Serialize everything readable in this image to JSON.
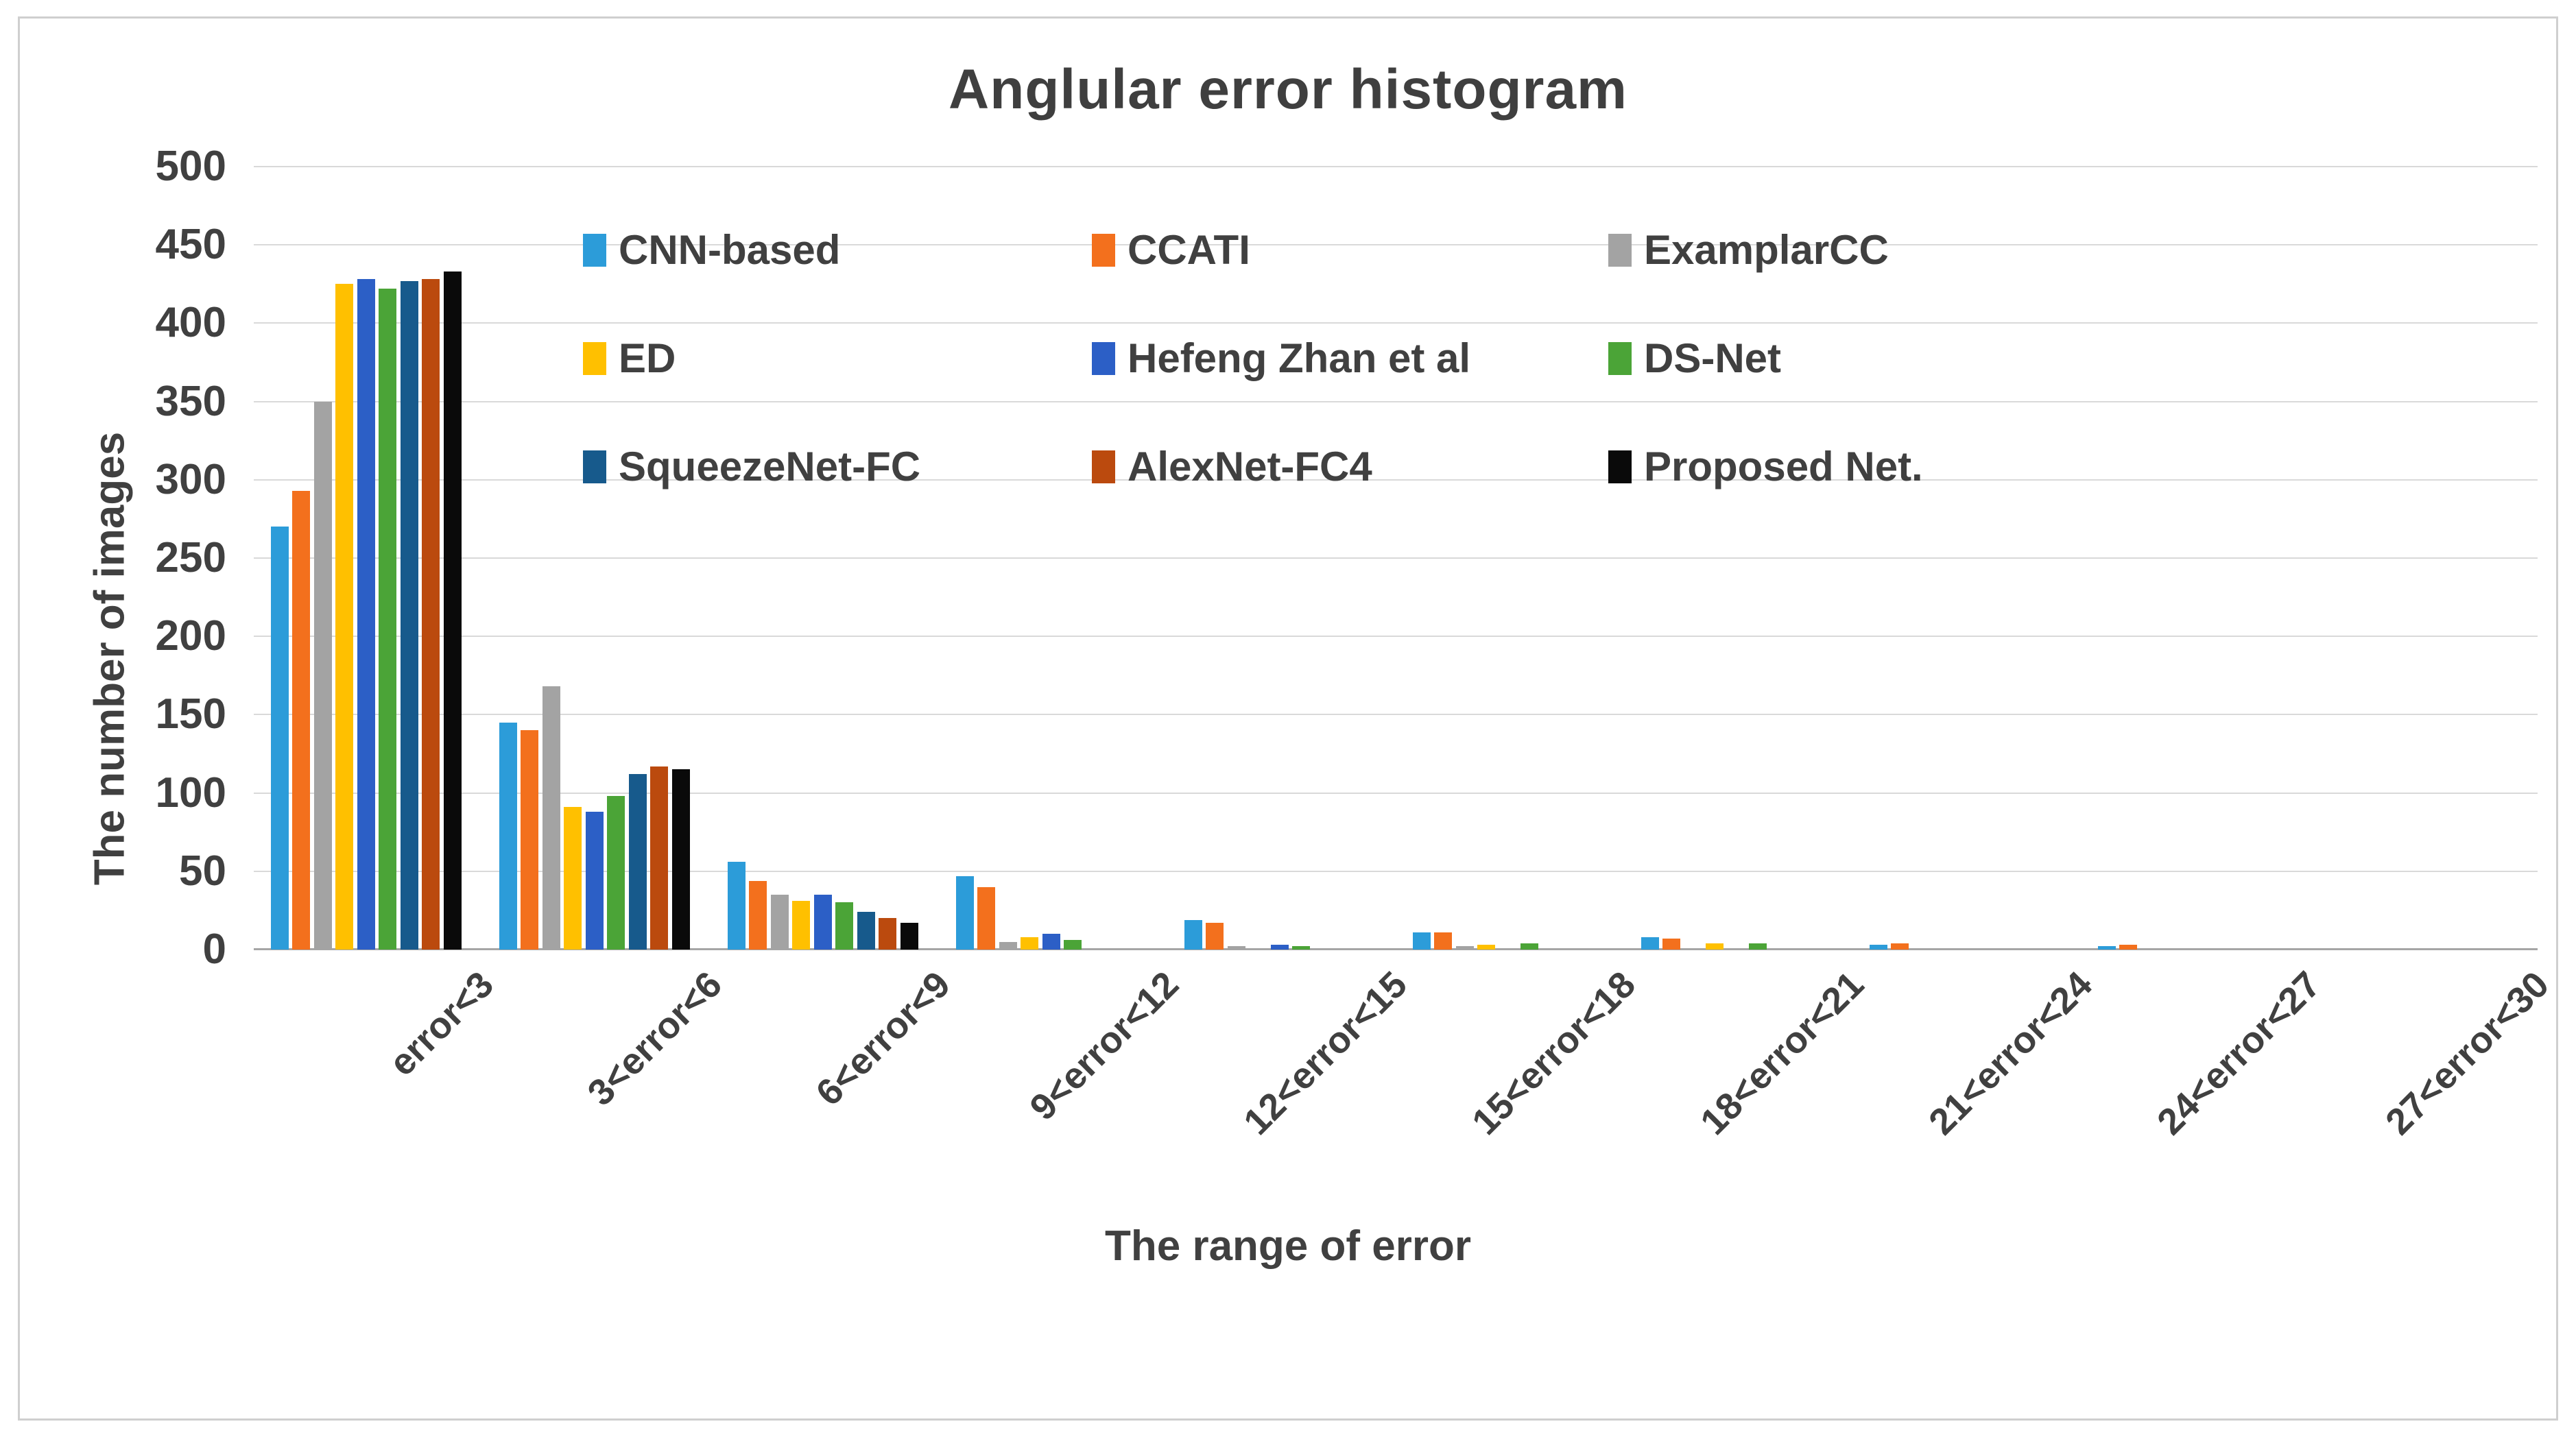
{
  "figure": {
    "title": "Anglular error histogram",
    "x_axis_title": "The range of error",
    "y_axis_title": "The number of images"
  },
  "chart_data": {
    "type": "bar",
    "title": "Anglular error histogram",
    "xlabel": "The range of error",
    "ylabel": "The number of images",
    "ylim": [
      0,
      500
    ],
    "ytick_step": 50,
    "yticks": [
      0,
      50,
      100,
      150,
      200,
      250,
      300,
      350,
      400,
      450,
      500
    ],
    "grid": "horizontal",
    "legend_position": "inside-top, 3 columns x 3 rows",
    "categories": [
      "error<3",
      "3<error<6",
      "6<error<9",
      "9<error<12",
      "12<error<15",
      "15<error<18",
      "18<error<21",
      "21<error<24",
      "24<error<27",
      "27<error<30"
    ],
    "series": [
      {
        "name": "CNN-based",
        "color": "#2c9cd9",
        "values": [
          270,
          145,
          56,
          47,
          19,
          11,
          8,
          3,
          2,
          0
        ]
      },
      {
        "name": "CCATI",
        "color": "#f3701d",
        "values": [
          293,
          140,
          44,
          40,
          17,
          11,
          7,
          4,
          3,
          0
        ]
      },
      {
        "name": "ExamplarCC",
        "color": "#a3a3a3",
        "values": [
          350,
          168,
          35,
          5,
          2,
          2,
          0,
          0,
          0,
          0
        ]
      },
      {
        "name": "ED",
        "color": "#ffc000",
        "values": [
          425,
          91,
          31,
          8,
          0,
          3,
          4,
          0,
          0,
          0
        ]
      },
      {
        "name": "Hefeng Zhan et al",
        "color": "#2c5fc6",
        "values": [
          428,
          88,
          35,
          10,
          3,
          0,
          0,
          0,
          0,
          0
        ]
      },
      {
        "name": "DS-Net",
        "color": "#4ba437",
        "values": [
          422,
          98,
          30,
          6,
          2,
          4,
          4,
          0,
          0,
          0
        ]
      },
      {
        "name": "SqueezeNet-FC",
        "color": "#175a8c",
        "values": [
          427,
          112,
          24,
          0,
          0,
          0,
          0,
          0,
          0,
          0
        ]
      },
      {
        "name": "AlexNet-FC4",
        "color": "#bb4a0e",
        "values": [
          428,
          117,
          20,
          0,
          0,
          0,
          0,
          0,
          0,
          0
        ]
      },
      {
        "name": "Proposed Net.",
        "color": "#0a0a0a",
        "values": [
          433,
          115,
          17,
          0,
          0,
          0,
          0,
          0,
          0,
          0
        ]
      }
    ]
  },
  "style_colors": {
    "text": "#404040",
    "gridline": "#d9d9d9",
    "axis_line": "#a6a6a6",
    "frame_border": "#cfcfcf",
    "background": "#ffffff"
  }
}
